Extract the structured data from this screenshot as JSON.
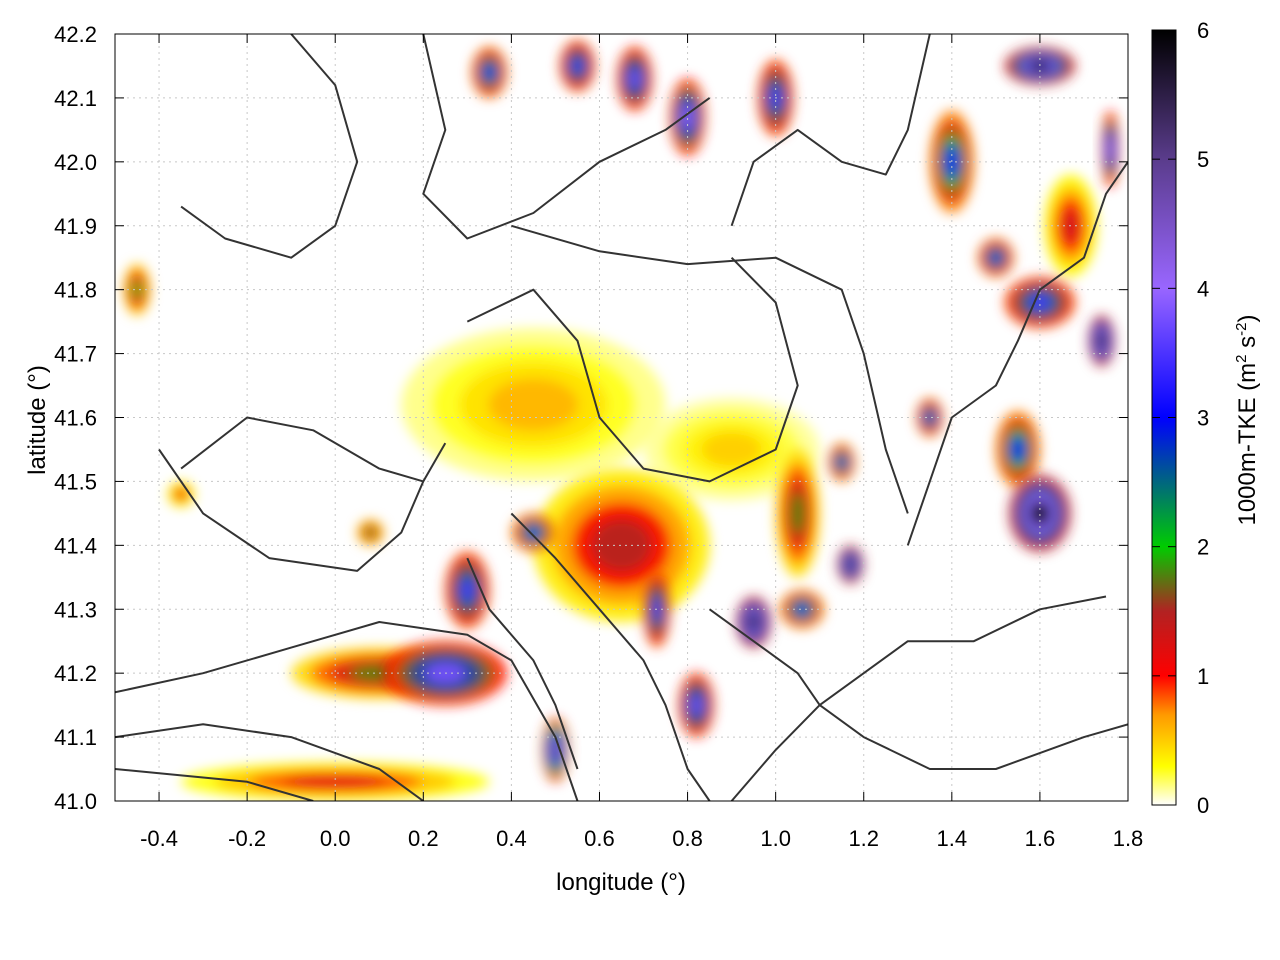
{
  "chart_data": {
    "type": "heatmap",
    "title": "",
    "xlabel": "longitude (°)",
    "ylabel": "latitude (°)",
    "xlim": [
      -0.5,
      1.8
    ],
    "ylim": [
      41.0,
      42.2
    ],
    "xticks": [
      -0.4,
      -0.2,
      0.0,
      0.2,
      0.4,
      0.6,
      0.8,
      1.0,
      1.2,
      1.4,
      1.6,
      1.8
    ],
    "xtick_labels": [
      "-0.4",
      "-0.2",
      "0.0",
      "0.2",
      "0.4",
      "0.6",
      "0.8",
      "1.0",
      "1.2",
      "1.4",
      "1.6",
      "1.8"
    ],
    "yticks": [
      41.0,
      41.1,
      41.2,
      41.3,
      41.4,
      41.5,
      41.6,
      41.7,
      41.8,
      41.9,
      42.0,
      42.1,
      42.2
    ],
    "ytick_labels": [
      "41.0",
      "41.1",
      "41.2",
      "41.3",
      "41.4",
      "41.5",
      "41.6",
      "41.7",
      "41.8",
      "41.9",
      "42.0",
      "42.1",
      "42.2"
    ],
    "grid": true,
    "colorbar": {
      "label": "1000m-TKE (m² s⁻²)",
      "label_main": "1000m-TKE (m",
      "label_sup1": "2",
      "label_mid": " s",
      "label_sup2": "-2",
      "label_end": ")",
      "min": 0,
      "max": 6,
      "ticks": [
        0,
        1,
        2,
        3,
        4,
        5,
        6
      ],
      "tick_labels": [
        "0",
        "1",
        "2",
        "3",
        "4",
        "5",
        "6"
      ],
      "colors": [
        {
          "value": 0.0,
          "color": "#ffffff"
        },
        {
          "value": 0.3,
          "color": "#ffff00"
        },
        {
          "value": 0.7,
          "color": "#ff9900"
        },
        {
          "value": 1.0,
          "color": "#ff0000"
        },
        {
          "value": 1.5,
          "color": "#b22222"
        },
        {
          "value": 2.0,
          "color": "#00cc00"
        },
        {
          "value": 3.0,
          "color": "#0000ff"
        },
        {
          "value": 4.0,
          "color": "#9966ff"
        },
        {
          "value": 5.0,
          "color": "#5a3c8c"
        },
        {
          "value": 6.0,
          "color": "#000000"
        }
      ]
    },
    "hotspots": [
      {
        "lon": 0.25,
        "lat": 41.2,
        "tke": 3.8,
        "rx": 0.14,
        "ry": 0.05
      },
      {
        "lon": 0.3,
        "lat": 41.33,
        "tke": 3.5,
        "rx": 0.05,
        "ry": 0.06
      },
      {
        "lon": 0.45,
        "lat": 41.42,
        "tke": 3.0,
        "rx": 0.05,
        "ry": 0.03
      },
      {
        "lon": 0.1,
        "lat": 41.2,
        "tke": 1.8,
        "rx": 0.2,
        "ry": 0.04
      },
      {
        "lon": 0.0,
        "lat": 41.03,
        "tke": 1.2,
        "rx": 0.35,
        "ry": 0.03
      },
      {
        "lon": 0.5,
        "lat": 41.08,
        "tke": 4.5,
        "rx": 0.03,
        "ry": 0.05
      },
      {
        "lon": 0.73,
        "lat": 41.3,
        "tke": 3.5,
        "rx": 0.03,
        "ry": 0.06
      },
      {
        "lon": 0.82,
        "lat": 41.15,
        "tke": 3.8,
        "rx": 0.04,
        "ry": 0.05
      },
      {
        "lon": 0.95,
        "lat": 41.28,
        "tke": 5.8,
        "rx": 0.04,
        "ry": 0.04
      },
      {
        "lon": 1.17,
        "lat": 41.37,
        "tke": 5.5,
        "rx": 0.03,
        "ry": 0.03
      },
      {
        "lon": 1.06,
        "lat": 41.3,
        "tke": 3.0,
        "rx": 0.05,
        "ry": 0.03
      },
      {
        "lon": 0.65,
        "lat": 41.4,
        "tke": 1.5,
        "rx": 0.2,
        "ry": 0.12
      },
      {
        "lon": 1.05,
        "lat": 41.45,
        "tke": 1.8,
        "rx": 0.05,
        "ry": 0.1
      },
      {
        "lon": 1.6,
        "lat": 41.45,
        "tke": 5.8,
        "rx": 0.07,
        "ry": 0.06
      },
      {
        "lon": 1.55,
        "lat": 41.55,
        "tke": 3.0,
        "rx": 0.05,
        "ry": 0.06
      },
      {
        "lon": 1.74,
        "lat": 41.72,
        "tke": 5.8,
        "rx": 0.03,
        "ry": 0.04
      },
      {
        "lon": 1.6,
        "lat": 41.78,
        "tke": 3.5,
        "rx": 0.08,
        "ry": 0.04
      },
      {
        "lon": 1.5,
        "lat": 41.85,
        "tke": 3.2,
        "rx": 0.04,
        "ry": 0.03
      },
      {
        "lon": 1.67,
        "lat": 41.9,
        "tke": 1.3,
        "rx": 0.06,
        "ry": 0.08
      },
      {
        "lon": 1.6,
        "lat": 42.15,
        "tke": 5.5,
        "rx": 0.08,
        "ry": 0.03
      },
      {
        "lon": 1.4,
        "lat": 42.0,
        "tke": 3.0,
        "rx": 0.05,
        "ry": 0.08
      },
      {
        "lon": 1.76,
        "lat": 42.02,
        "tke": 4.0,
        "rx": 0.02,
        "ry": 0.06
      },
      {
        "lon": 0.8,
        "lat": 42.07,
        "tke": 4.0,
        "rx": 0.04,
        "ry": 0.06
      },
      {
        "lon": 0.68,
        "lat": 42.13,
        "tke": 3.8,
        "rx": 0.04,
        "ry": 0.05
      },
      {
        "lon": 0.35,
        "lat": 42.14,
        "tke": 3.2,
        "rx": 0.04,
        "ry": 0.04
      },
      {
        "lon": 0.55,
        "lat": 42.15,
        "tke": 3.5,
        "rx": 0.04,
        "ry": 0.04
      },
      {
        "lon": 1.0,
        "lat": 42.1,
        "tke": 3.5,
        "rx": 0.04,
        "ry": 0.06
      },
      {
        "lon": 1.15,
        "lat": 41.53,
        "tke": 3.0,
        "rx": 0.03,
        "ry": 0.03
      },
      {
        "lon": 1.35,
        "lat": 41.6,
        "tke": 3.2,
        "rx": 0.03,
        "ry": 0.03
      },
      {
        "lon": 0.08,
        "lat": 41.42,
        "tke": 2.0,
        "rx": 0.03,
        "ry": 0.02
      },
      {
        "lon": -0.45,
        "lat": 41.8,
        "tke": 2.0,
        "rx": 0.03,
        "ry": 0.04
      },
      {
        "lon": -0.35,
        "lat": 41.48,
        "tke": 1.2,
        "rx": 0.03,
        "ry": 0.02
      },
      {
        "lon": 0.45,
        "lat": 41.62,
        "tke": 0.6,
        "rx": 0.3,
        "ry": 0.12
      },
      {
        "lon": 0.9,
        "lat": 41.55,
        "tke": 0.5,
        "rx": 0.2,
        "ry": 0.08
      }
    ]
  }
}
